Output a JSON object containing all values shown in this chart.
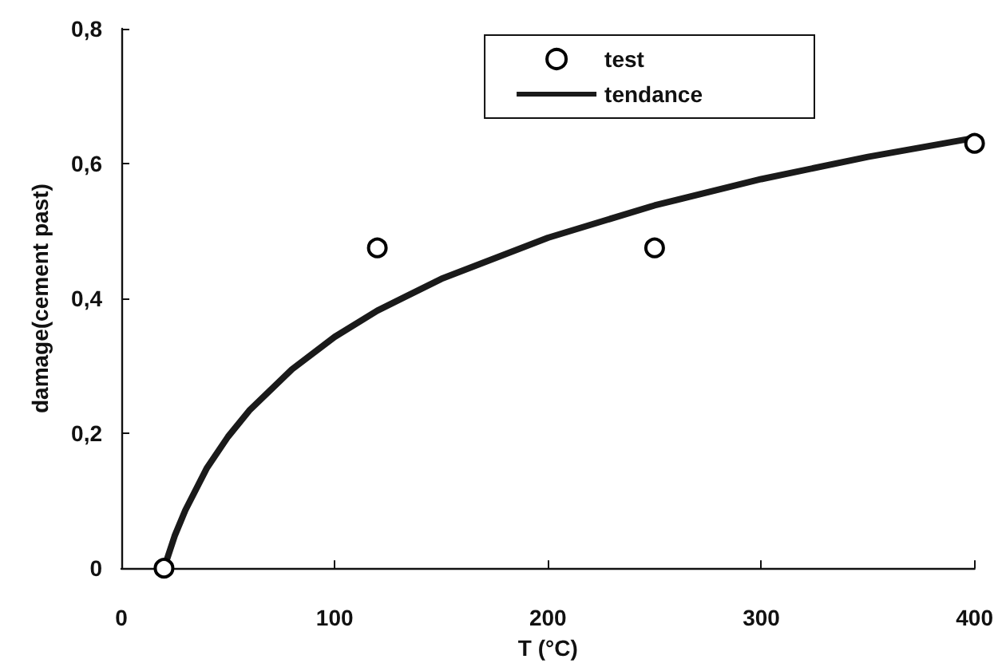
{
  "chart_data": {
    "type": "scatter",
    "xlabel": "T (°C)",
    "ylabel": "damage(cement past)",
    "xlim": [
      0,
      400
    ],
    "xticks": [
      0,
      100,
      200,
      300,
      400
    ],
    "ylim": [
      0,
      0.8
    ],
    "yticks": [
      0,
      {
        "value": 0.2,
        "label": "0,2"
      },
      {
        "value": 0.4,
        "label": "0,4"
      },
      {
        "value": 0.6,
        "label": "0,6"
      },
      {
        "value": 0.8,
        "label": "0,8"
      }
    ],
    "grid": false,
    "legend": "top right",
    "series": [
      {
        "name": "test",
        "marker": "circle",
        "color": "#000000",
        "x": [
          20,
          120,
          250,
          400
        ],
        "values": [
          0,
          0.475,
          0.475,
          0.63
        ]
      },
      {
        "name": "tendance",
        "type": "line",
        "marker": "none",
        "line_style": "solid",
        "color": "#1a1a1a",
        "x": [
          20,
          25,
          30,
          40,
          50,
          60,
          80,
          100,
          120,
          150,
          200,
          250,
          300,
          350,
          400
        ],
        "values": [
          0,
          0.048,
          0.086,
          0.148,
          0.195,
          0.234,
          0.295,
          0.343,
          0.382,
          0.429,
          0.49,
          0.538,
          0.577,
          0.61,
          0.638
        ]
      }
    ]
  }
}
